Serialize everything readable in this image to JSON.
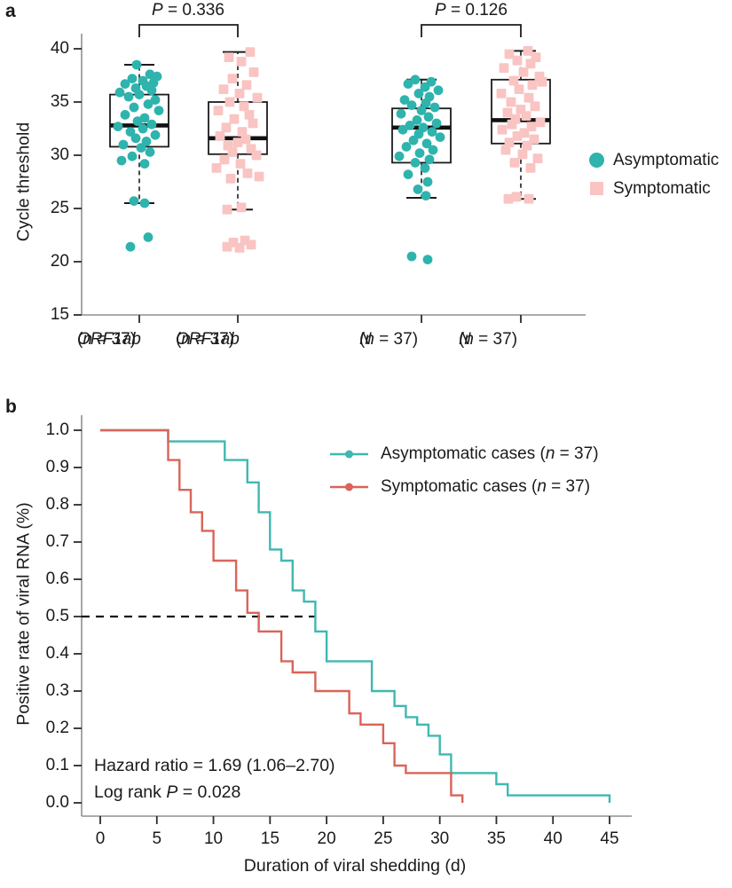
{
  "figure": {
    "panel_a_letter": "a",
    "panel_b_letter": "b"
  },
  "colors": {
    "asymptomatic": "#2fb3ad",
    "asymptomatic_line": "#3fb8b1",
    "symptomatic_fill": "#f9c4c2",
    "symptomatic_line": "#d96459",
    "axis_line": "#8f8f8f",
    "tick": "#2b2b2b",
    "text": "#1a1a1a"
  },
  "chart_data": [
    {
      "type": "boxplot",
      "panel": "a",
      "ylabel": "Cycle threshold",
      "ylim": [
        15,
        41.5
      ],
      "yticks": [
        40,
        35,
        30,
        25,
        20,
        15
      ],
      "legend": [
        {
          "label": "Asymptomatic",
          "marker": "circle"
        },
        {
          "label": "Symptomatic",
          "marker": "square"
        }
      ],
      "comparisons": [
        {
          "label": "P = 0.336",
          "groups": [
            0,
            1
          ]
        },
        {
          "label": "P = 0.126",
          "groups": [
            2,
            3
          ]
        }
      ],
      "groups": [
        {
          "gene": "ORF1ab",
          "n_label": "(n = 37)",
          "series": "Asymptomatic",
          "box": {
            "whisker_low": 25.5,
            "q1": 30.8,
            "median": 32.8,
            "q3": 35.7,
            "whisker_high": 38.5
          },
          "points": [
            [
              38.5,
              -3
            ],
            [
              37.6,
              12
            ],
            [
              37.4,
              20
            ],
            [
              37.2,
              -8
            ],
            [
              37.0,
              4
            ],
            [
              36.8,
              16
            ],
            [
              36.7,
              -16
            ],
            [
              36.5,
              8
            ],
            [
              36.3,
              -4
            ],
            [
              36.1,
              14
            ],
            [
              35.9,
              -22
            ],
            [
              35.7,
              0
            ],
            [
              35.5,
              -12
            ],
            [
              35.2,
              18
            ],
            [
              34.8,
              10
            ],
            [
              34.5,
              -6
            ],
            [
              34.2,
              22
            ],
            [
              33.8,
              -16
            ],
            [
              33.5,
              6
            ],
            [
              33.2,
              -2
            ],
            [
              32.9,
              14
            ],
            [
              32.7,
              -24
            ],
            [
              32.5,
              4
            ],
            [
              32.2,
              -10
            ],
            [
              31.9,
              18
            ],
            [
              31.6,
              -4
            ],
            [
              31.3,
              8
            ],
            [
              31.0,
              -18
            ],
            [
              30.7,
              2
            ],
            [
              30.3,
              12
            ],
            [
              29.9,
              -8
            ],
            [
              29.5,
              -20
            ],
            [
              29.2,
              6
            ],
            [
              25.7,
              -6
            ],
            [
              25.5,
              6
            ],
            [
              22.3,
              10
            ],
            [
              21.4,
              -10
            ]
          ]
        },
        {
          "gene": "ORF1ab",
          "n_label": "(n = 37)",
          "series": "Symptomatic",
          "box": {
            "whisker_low": 24.9,
            "q1": 30.1,
            "median": 31.6,
            "q3": 35.0,
            "whisker_high": 39.7
          },
          "points": [
            [
              39.7,
              14
            ],
            [
              39.2,
              -10
            ],
            [
              38.8,
              4
            ],
            [
              37.8,
              18
            ],
            [
              37.2,
              -6
            ],
            [
              36.6,
              10
            ],
            [
              36.2,
              -16
            ],
            [
              35.8,
              2
            ],
            [
              35.4,
              22
            ],
            [
              35.0,
              -9
            ],
            [
              34.6,
              7
            ],
            [
              34.2,
              -22
            ],
            [
              33.8,
              13
            ],
            [
              33.4,
              -4
            ],
            [
              33.0,
              17
            ],
            [
              32.6,
              -13
            ],
            [
              32.2,
              5
            ],
            [
              31.8,
              -20
            ],
            [
              31.5,
              9
            ],
            [
              31.2,
              0
            ],
            [
              30.9,
              -11
            ],
            [
              30.6,
              15
            ],
            [
              30.3,
              -6
            ],
            [
              30.0,
              21
            ],
            [
              29.6,
              -15
            ],
            [
              29.2,
              3
            ],
            [
              28.8,
              -24
            ],
            [
              28.3,
              11
            ],
            [
              28.0,
              24
            ],
            [
              27.8,
              -8
            ],
            [
              25.1,
              4
            ],
            [
              24.9,
              -12
            ],
            [
              22.0,
              8
            ],
            [
              21.8,
              -5
            ],
            [
              21.6,
              15
            ],
            [
              21.4,
              -12
            ],
            [
              21.3,
              2
            ]
          ]
        },
        {
          "gene": "N",
          "n_label": "(n = 37)",
          "series": "Asymptomatic",
          "box": {
            "whisker_low": 26.0,
            "q1": 29.3,
            "median": 32.6,
            "q3": 34.4,
            "whisker_high": 37.1
          },
          "points": [
            [
              37.1,
              -7
            ],
            [
              36.9,
              11
            ],
            [
              36.7,
              -15
            ],
            [
              36.4,
              4
            ],
            [
              36.1,
              19
            ],
            [
              35.8,
              -3
            ],
            [
              35.5,
              9
            ],
            [
              35.2,
              -19
            ],
            [
              34.9,
              5
            ],
            [
              34.7,
              -11
            ],
            [
              34.5,
              15
            ],
            [
              34.2,
              0
            ],
            [
              33.9,
              -23
            ],
            [
              33.6,
              8
            ],
            [
              33.3,
              -5
            ],
            [
              33.0,
              17
            ],
            [
              32.8,
              -13
            ],
            [
              32.6,
              2
            ],
            [
              32.4,
              -21
            ],
            [
              32.2,
              12
            ],
            [
              32.0,
              -3
            ],
            [
              31.7,
              21
            ],
            [
              31.4,
              -9
            ],
            [
              31.1,
              6
            ],
            [
              30.8,
              -17
            ],
            [
              30.5,
              13
            ],
            [
              30.2,
              -2
            ],
            [
              29.9,
              -25
            ],
            [
              29.6,
              9
            ],
            [
              29.3,
              -7
            ],
            [
              28.8,
              4
            ],
            [
              28.2,
              -15
            ],
            [
              27.5,
              7
            ],
            [
              26.8,
              -4
            ],
            [
              26.2,
              5
            ],
            [
              20.5,
              -11
            ],
            [
              20.2,
              7
            ]
          ]
        },
        {
          "gene": "N",
          "n_label": "(n = 37)",
          "series": "Symptomatic",
          "box": {
            "whisker_low": 25.9,
            "q1": 31.1,
            "median": 33.3,
            "q3": 37.1,
            "whisker_high": 39.8
          },
          "points": [
            [
              39.8,
              8
            ],
            [
              39.5,
              -13
            ],
            [
              39.2,
              17
            ],
            [
              38.9,
              -4
            ],
            [
              38.6,
              11
            ],
            [
              38.2,
              -19
            ],
            [
              37.8,
              3
            ],
            [
              37.4,
              21
            ],
            [
              37.0,
              -8
            ],
            [
              36.9,
              24
            ],
            [
              36.6,
              13
            ],
            [
              36.2,
              -2
            ],
            [
              35.8,
              -22
            ],
            [
              35.4,
              9
            ],
            [
              35.0,
              -11
            ],
            [
              34.6,
              16
            ],
            [
              34.3,
              0
            ],
            [
              34.0,
              -15
            ],
            [
              33.7,
              6
            ],
            [
              33.4,
              -6
            ],
            [
              33.1,
              22
            ],
            [
              32.9,
              -10
            ],
            [
              32.7,
              12
            ],
            [
              32.4,
              -21
            ],
            [
              32.1,
              4
            ],
            [
              31.8,
              -4
            ],
            [
              31.5,
              15
            ],
            [
              31.2,
              -13
            ],
            [
              30.9,
              7
            ],
            [
              30.5,
              -17
            ],
            [
              30.1,
              2
            ],
            [
              29.7,
              19
            ],
            [
              29.3,
              -7
            ],
            [
              28.8,
              11
            ],
            [
              26.1,
              -5
            ],
            [
              25.9,
              9
            ],
            [
              25.9,
              -14
            ]
          ]
        }
      ]
    },
    {
      "type": "step_line",
      "panel": "b",
      "subtype": "kaplan-meier",
      "xlabel": "Duration of viral shedding (d)",
      "ylabel": "Positive rate of viral RNA (%)",
      "xlim": [
        0,
        45
      ],
      "ylim": [
        0,
        1
      ],
      "xticks": [
        0,
        5,
        10,
        15,
        20,
        25,
        30,
        35,
        40,
        45
      ],
      "yticks": [
        1.0,
        0.9,
        0.8,
        0.7,
        0.6,
        0.5,
        0.4,
        0.3,
        0.2,
        0.1,
        0.0
      ],
      "reference_line_y": 0.5,
      "series": [
        {
          "name": "Asymptomatic cases (n = 37)",
          "x": [
            0,
            6,
            11,
            13,
            14,
            15,
            16,
            17,
            18,
            19,
            20,
            24,
            26,
            27,
            28,
            29,
            30,
            31,
            35,
            36,
            45
          ],
          "y": [
            1.0,
            0.97,
            0.92,
            0.86,
            0.78,
            0.68,
            0.65,
            0.57,
            0.54,
            0.46,
            0.38,
            0.3,
            0.26,
            0.23,
            0.21,
            0.18,
            0.13,
            0.08,
            0.05,
            0.02,
            0.0
          ]
        },
        {
          "name": "Symptomatic cases (n = 37)",
          "x": [
            0,
            6,
            7,
            8,
            9,
            10,
            12,
            13,
            14,
            16,
            17,
            19,
            22,
            23,
            25,
            26,
            27,
            31,
            32
          ],
          "y": [
            1.0,
            0.92,
            0.84,
            0.78,
            0.73,
            0.65,
            0.57,
            0.51,
            0.46,
            0.38,
            0.35,
            0.3,
            0.24,
            0.21,
            0.16,
            0.1,
            0.08,
            0.02,
            0.0
          ]
        }
      ],
      "annotations": [
        "Hazard ratio = 1.69 (1.06–2.70)",
        "Log rank P = 0.028"
      ]
    }
  ]
}
